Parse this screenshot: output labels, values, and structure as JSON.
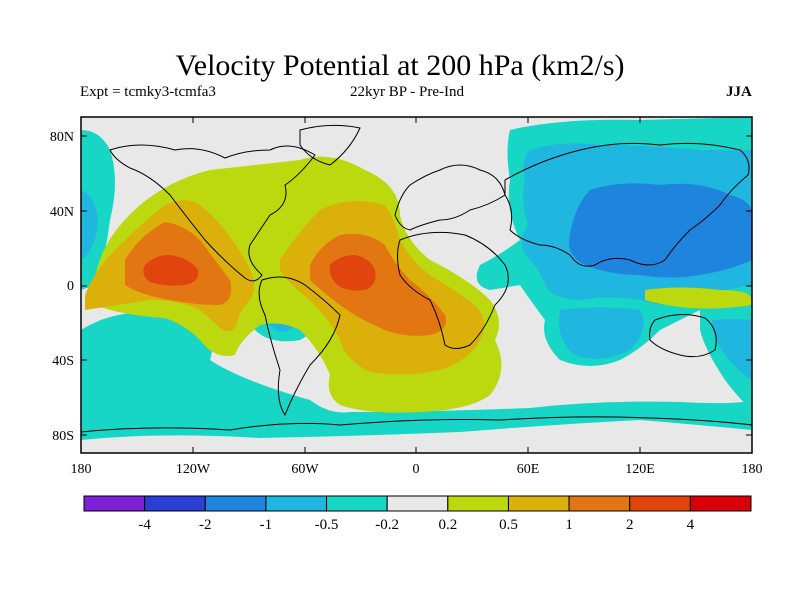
{
  "title": "Velocity Potential at 200 hPa (km2/s)",
  "experiment": "Expt = tcmky3-tcmfa3",
  "comparison": "22kyr BP - Pre-Ind",
  "season": "JJA",
  "lat_ticks": [
    "80N",
    "40N",
    "0",
    "40S",
    "80S"
  ],
  "lon_ticks": [
    "180",
    "120W",
    "60W",
    "0",
    "60E",
    "120E",
    "180"
  ],
  "colorbar": {
    "colors": [
      "#7d20d8",
      "#2b3fd6",
      "#1f84dd",
      "#1fb6e0",
      "#17d6c6",
      "#e8e8e8",
      "#bcd80e",
      "#dcb00a",
      "#e27612",
      "#e2440e",
      "#d8000a"
    ],
    "labels": [
      "-4",
      "-2",
      "-1",
      "-0.5",
      "-0.2",
      "0.2",
      "0.5",
      "1",
      "2",
      "4"
    ]
  },
  "field_colors": {
    "background": "#e8e8e8",
    "neg_02": "#17d6c6",
    "neg_05": "#1fb6e0",
    "neg_1": "#1f84dd",
    "pos_02": "#bcd80e",
    "pos_05": "#dcb00a",
    "pos_1": "#e27612",
    "pos_2": "#e2440e"
  }
}
